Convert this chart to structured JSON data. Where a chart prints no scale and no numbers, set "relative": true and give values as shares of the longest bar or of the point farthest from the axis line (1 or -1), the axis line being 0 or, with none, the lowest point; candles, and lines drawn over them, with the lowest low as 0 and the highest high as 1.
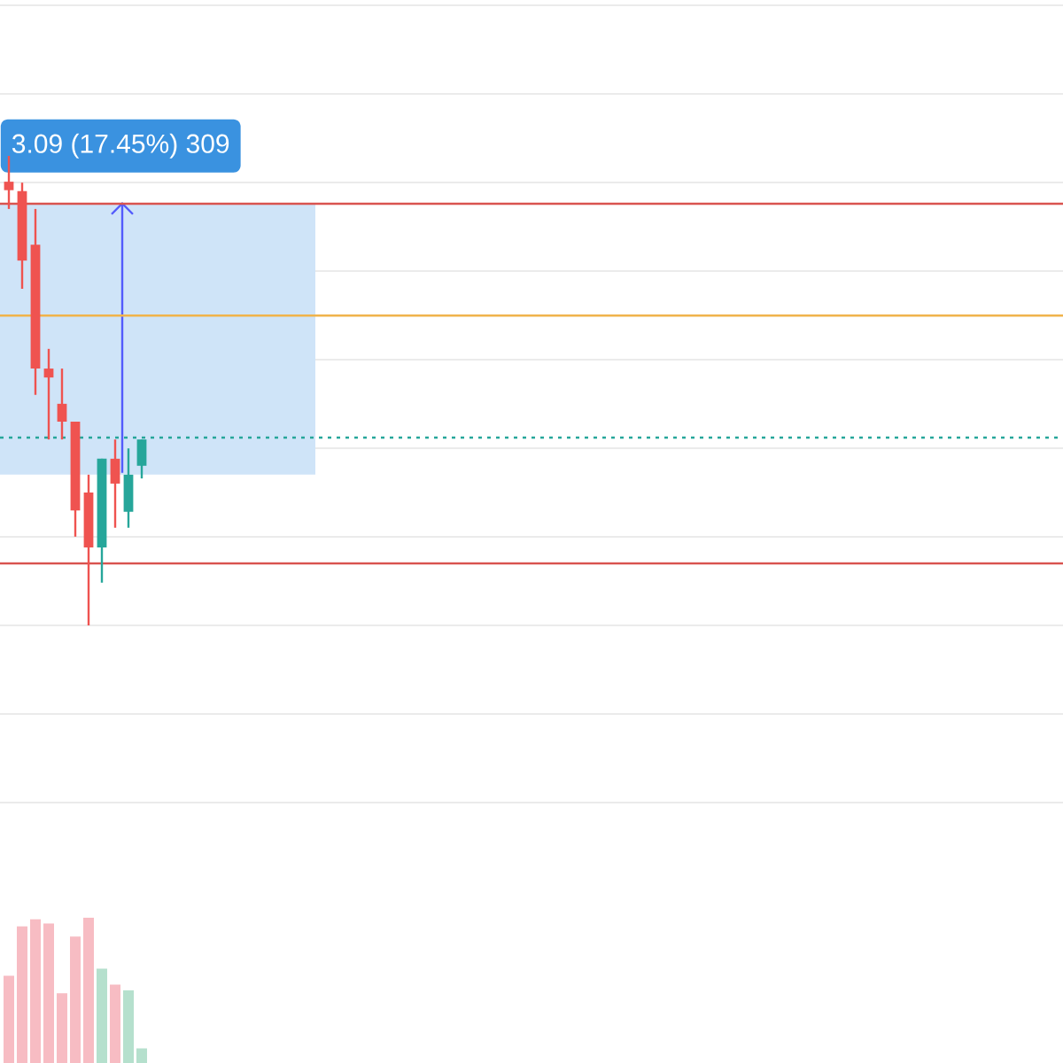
{
  "chart_data": [
    {
      "type": "candlestick",
      "relative": true,
      "grid": true,
      "categories": [
        null,
        null,
        null,
        null,
        null,
        null,
        null,
        null,
        null,
        null,
        null
      ],
      "ohlc": [
        [
          0.945,
          1,
          0.887,
          0.927
        ],
        [
          0.925,
          0.943,
          0.717,
          0.777
        ],
        [
          0.811,
          0.887,
          0.491,
          0.547
        ],
        [
          0.547,
          0.589,
          0.396,
          0.528
        ],
        [
          0.472,
          0.547,
          0.396,
          0.434
        ],
        [
          0.434,
          0.434,
          0.189,
          0.245
        ],
        [
          0.283,
          0.321,
          0,
          0.166
        ],
        [
          0.166,
          0.355,
          0.091,
          0.355
        ],
        [
          0.355,
          0.396,
          0.208,
          0.302
        ],
        [
          0.242,
          0.377,
          0.208,
          0.321
        ],
        [
          0.34,
          0.396,
          0.313,
          0.396
        ]
      ],
      "colors": [
        "#ef5350",
        "#ef5350",
        "#ef5350",
        "#ef5350",
        "#ef5350",
        "#ef5350",
        "#ef5350",
        "#26a69a",
        "#ef5350",
        "#26a69a",
        "#26a69a"
      ],
      "ref_lines": [
        {
          "axis": "y",
          "value": 0.898,
          "color": "#d9534f",
          "line_style": "solid"
        },
        {
          "axis": "y",
          "value": 0.66,
          "color": "#f0b34b",
          "line_style": "solid"
        },
        {
          "axis": "y",
          "value": 0.4,
          "color": "#26a69a",
          "line_style": "dotted"
        },
        {
          "axis": "y",
          "value": 0.132,
          "color": "#d9534f",
          "line_style": "solid"
        }
      ],
      "bands": [
        {
          "axis": "y",
          "from": 0.321,
          "to": 0.898,
          "color": "#cfe4f8"
        }
      ],
      "annotations": [
        "3.09 (17.45%) 309"
      ]
    },
    {
      "type": "bar",
      "relative": true,
      "categories": [
        null,
        null,
        null,
        null,
        null,
        null,
        null,
        null,
        null,
        null,
        null
      ],
      "values": [
        0.6,
        0.94,
        0.99,
        0.96,
        0.48,
        0.87,
        1,
        0.65,
        0.54,
        0.5,
        0.1
      ],
      "colors": [
        "#f7bcc3",
        "#f7bcc3",
        "#f7bcc3",
        "#f7bcc3",
        "#f7bcc3",
        "#f7bcc3",
        "#f7bcc3",
        "#b5e0cd",
        "#f7bcc3",
        "#b5e0cd",
        "#b5e0cd"
      ]
    }
  ]
}
